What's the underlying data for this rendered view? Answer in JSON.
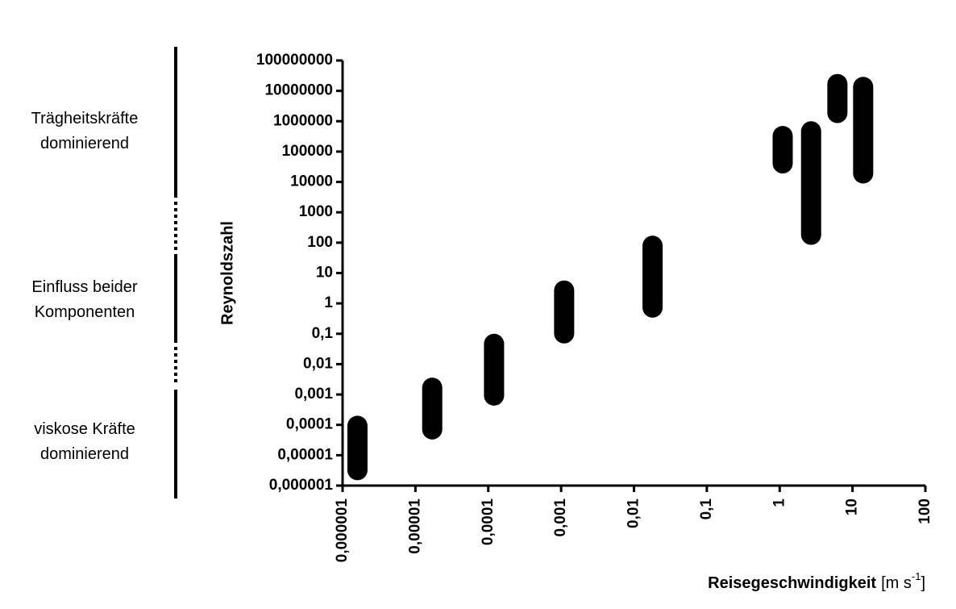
{
  "chart_data": {
    "type": "range",
    "ylabel": "Reynoldszahl",
    "xlabel": "Reisegeschwindigkeit",
    "xunit": "[m s",
    "xunit_exp": "-1",
    "xunit_close": "]",
    "regions": [
      [
        "Trägheitskräfte",
        "dominierend"
      ],
      [
        "Einfluss beider",
        "Komponenten"
      ],
      [
        "viskose Kräfte",
        "dominierend"
      ]
    ],
    "xscale": "log",
    "yscale": "log",
    "color": "#000000",
    "x": [
      1.6e-06,
      1.7e-05,
      0.00012,
      0.0011,
      0.018,
      1.1,
      2.7,
      6.2,
      14
    ],
    "low": [
      1.5e-06,
      3.3e-05,
      0.00043,
      0.048,
      0.34,
      19000,
      85,
      870000,
      8900
    ],
    "high": [
      0.0002,
      0.0036,
      0.1,
      5.7,
      170,
      700000,
      1000000,
      36000000,
      29000000
    ],
    "xlim": [
      1e-06,
      100
    ],
    "ylim": [
      1e-06,
      100000000
    ],
    "xticks": [
      {
        "value": 1e-06,
        "label": "0,000001"
      },
      {
        "value": 1e-05,
        "label": "0,00001"
      },
      {
        "value": 0.0001,
        "label": "0,0001"
      },
      {
        "value": 0.001,
        "label": "0,001"
      },
      {
        "value": 0.01,
        "label": "0,01"
      },
      {
        "value": 0.1,
        "label": "0,1"
      },
      1,
      10,
      100
    ],
    "yticks": [
      {
        "value": 1e-06,
        "label": "0,000001"
      },
      {
        "value": 1e-05,
        "label": "0,00001"
      },
      {
        "value": 0.0001,
        "label": "0,0001"
      },
      {
        "value": 0.001,
        "label": "0,001"
      },
      {
        "value": 0.01,
        "label": "0,01"
      },
      {
        "value": 0.1,
        "label": "0,1"
      },
      1,
      10,
      100,
      1000,
      10000,
      100000,
      1000000,
      10000000,
      100000000
    ]
  }
}
